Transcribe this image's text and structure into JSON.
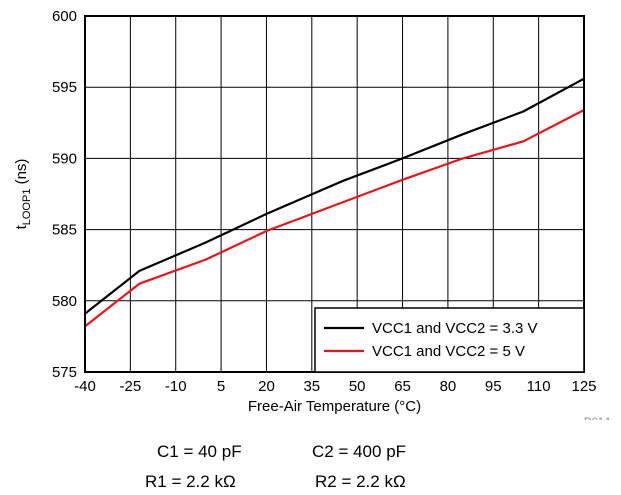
{
  "chart_data": {
    "type": "line",
    "xlabel": "Free-Air Temperature (°C)",
    "ylabel": {
      "base": "t",
      "sub": "LOOP1",
      "suffix": " (ns)"
    },
    "x_ticks": [
      -40,
      -25,
      -10,
      5,
      20,
      35,
      50,
      65,
      80,
      95,
      110,
      125
    ],
    "y_ticks": [
      575,
      580,
      585,
      590,
      595,
      600
    ],
    "xlim": [
      -40,
      125
    ],
    "ylim": [
      575,
      600
    ],
    "grid": true,
    "legend_position": "bottom-right",
    "series": [
      {
        "name": "VCC1 and VCC2 = 3.3 V",
        "color": "#000000",
        "x": [
          -40,
          -22,
          0,
          20,
          45,
          65,
          85,
          105,
          125
        ],
        "y": [
          579.1,
          582.1,
          584.1,
          586.1,
          588.4,
          590.0,
          591.7,
          593.3,
          595.6
        ]
      },
      {
        "name": "VCC1 and VCC2 = 5 V",
        "color": "#e8141b",
        "x": [
          -40,
          -22,
          0,
          20,
          45,
          65,
          85,
          105,
          125
        ],
        "y": [
          578.2,
          581.2,
          582.9,
          584.9,
          586.9,
          588.5,
          590.0,
          591.2,
          593.4
        ]
      }
    ]
  },
  "figure_id": "D014",
  "conditions": {
    "c1": "C1 = 40 pF",
    "c2": "C2 = 400 pF",
    "r1": "R1 = 2.2 kΩ",
    "r2": "R2 = 2.2 kΩ"
  }
}
